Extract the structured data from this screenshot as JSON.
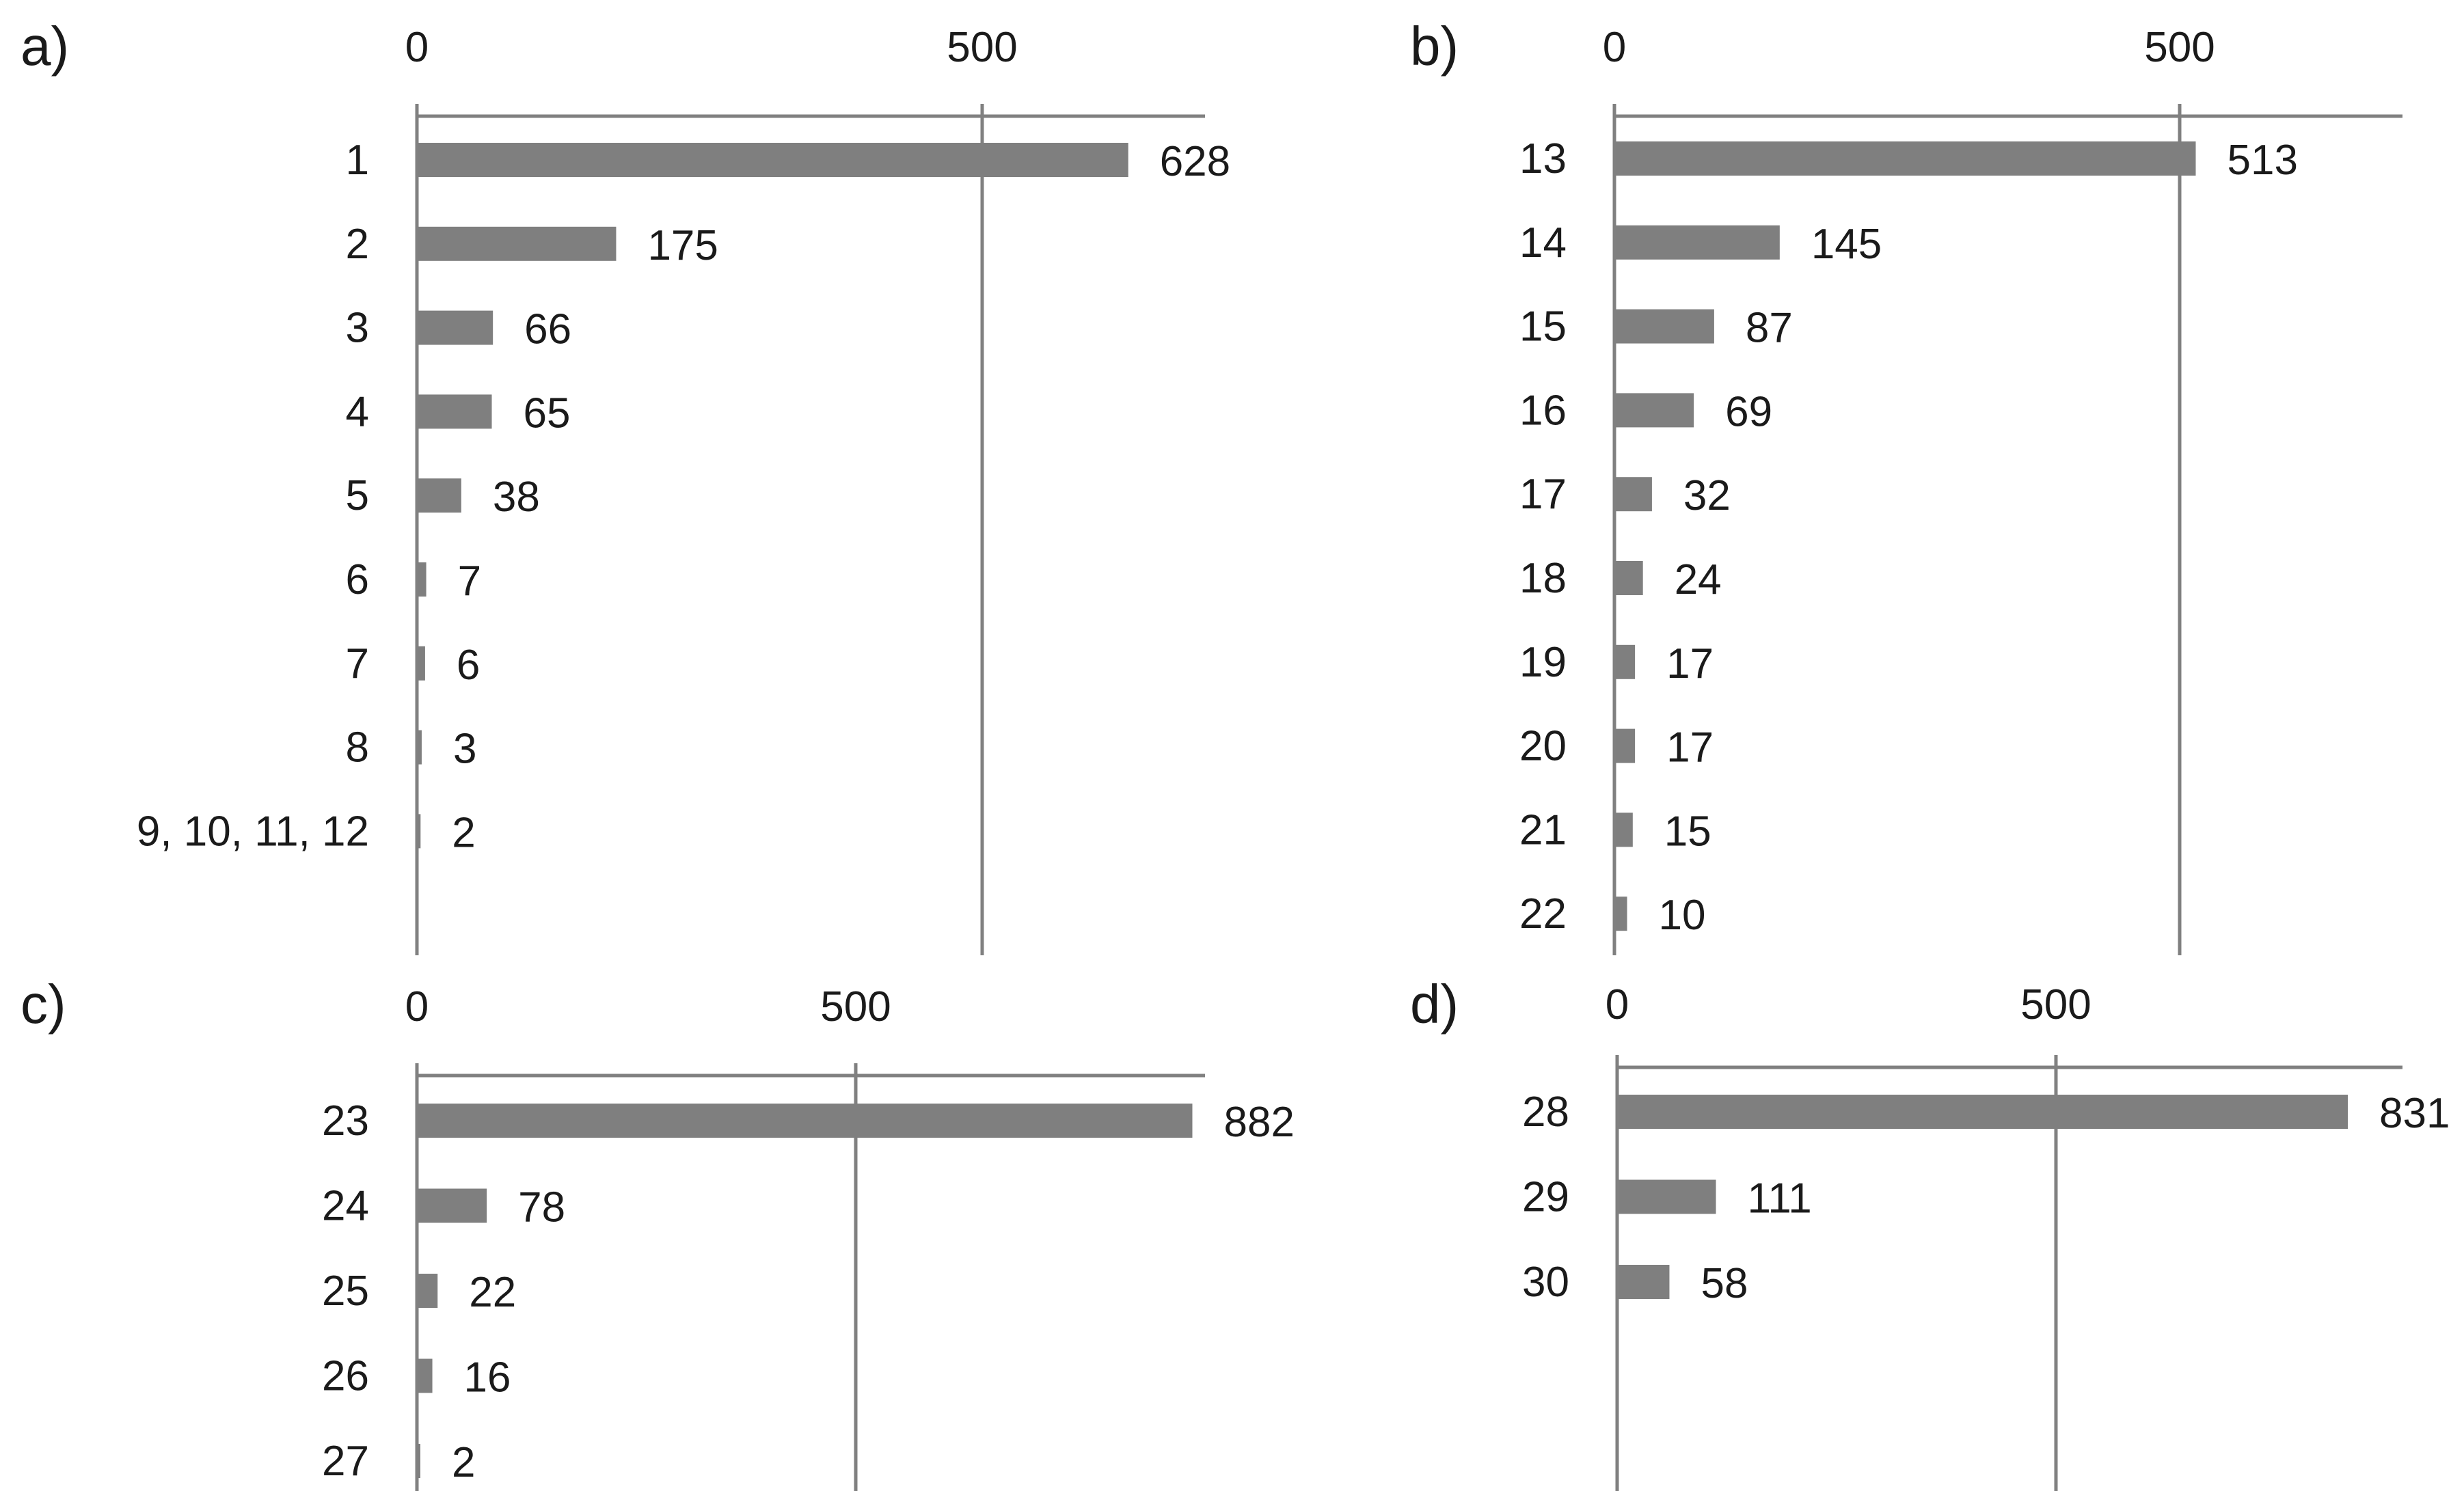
{
  "colors": {
    "bar": "#7f7f7f",
    "axis": "#808080",
    "text": "#1a1a1a"
  },
  "chart_data": [
    {
      "type": "bar",
      "orientation": "horizontal",
      "panel": "a)",
      "categories": [
        "1",
        "2",
        "3",
        "4",
        "5",
        "6",
        "7",
        "8",
        "9, 10, 11, 12"
      ],
      "values": [
        628,
        175,
        66,
        65,
        38,
        7,
        6,
        3,
        2
      ],
      "data_labels": [
        "628",
        "175",
        "66",
        "65",
        "38",
        "7",
        "6",
        "3",
        "2"
      ],
      "x_ticks": [
        0,
        500
      ],
      "x_tick_labels": [
        "0",
        "500"
      ],
      "xlim": [
        0,
        700
      ],
      "axis_position": "top",
      "grid": "vertical"
    },
    {
      "type": "bar",
      "orientation": "horizontal",
      "panel": "b)",
      "categories": [
        "13",
        "14",
        "15",
        "16",
        "17",
        "18",
        "19",
        "20",
        "21",
        "22"
      ],
      "values": [
        513,
        145,
        87,
        69,
        32,
        24,
        17,
        17,
        15,
        10
      ],
      "data_labels": [
        "513",
        "145",
        "87",
        "69",
        "32",
        "24",
        "17",
        "17",
        "15",
        "10"
      ],
      "x_ticks": [
        0,
        500
      ],
      "x_tick_labels": [
        "0",
        "500"
      ],
      "xlim": [
        0,
        700
      ],
      "axis_position": "top",
      "grid": "vertical"
    },
    {
      "type": "bar",
      "orientation": "horizontal",
      "panel": "c)",
      "categories": [
        "23",
        "24",
        "25",
        "26",
        "27"
      ],
      "values": [
        882,
        78,
        22,
        16,
        2
      ],
      "data_labels": [
        "882",
        "78",
        "22",
        "16",
        "2"
      ],
      "x_ticks": [
        0,
        500
      ],
      "x_tick_labels": [
        "0",
        "500"
      ],
      "xlim": [
        0,
        900
      ],
      "axis_position": "top",
      "grid": "vertical"
    },
    {
      "type": "bar",
      "orientation": "horizontal",
      "panel": "d)",
      "categories": [
        "28",
        "29",
        "30"
      ],
      "values": [
        831,
        111,
        58
      ],
      "data_labels": [
        "831",
        "111",
        "58"
      ],
      "x_ticks": [
        0,
        500
      ],
      "x_tick_labels": [
        "0",
        "500"
      ],
      "xlim": [
        0,
        900
      ],
      "axis_position": "top",
      "grid": "vertical"
    }
  ]
}
